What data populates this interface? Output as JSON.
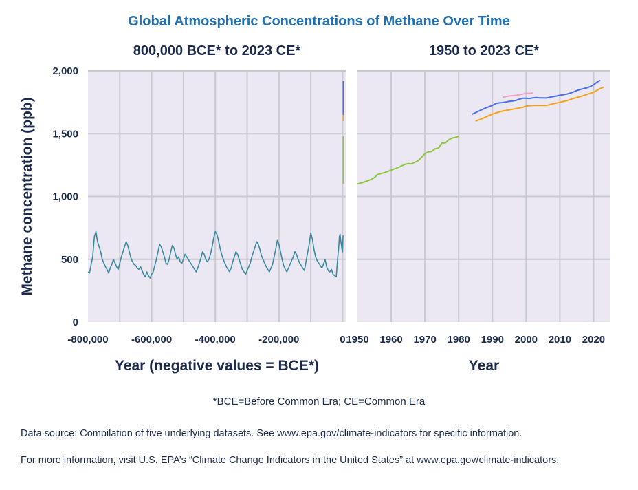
{
  "title": "Global Atmospheric Concentrations of Methane Over Time",
  "footnote": "*BCE=Before Common Era; CE=Common Era",
  "source_lines": [
    "Data source: Compilation of five underlying datasets. See www.epa.gov/climate-indicators for specific information.",
    "For more information, visit U.S. EPA’s “Climate Change Indicators in the United States” at www.epa.gov/climate-indicators."
  ],
  "colors": {
    "title": "#1f6fb2",
    "text": "#1b2a4a",
    "plot_bg": "#ebe8f4",
    "grid": "#c9c9cf",
    "ice_core": "#3a8a9e",
    "green": "#8cc63f",
    "blue": "#4a6fe3",
    "orange": "#f7a21b",
    "pink": "#f29fc5"
  },
  "chart_data": [
    {
      "type": "line",
      "title": "800,000 BCE* to 2023 CE*",
      "xlabel": "Year (negative values = BCE*)",
      "ylabel": "Methane concentration (ppb)",
      "xlim": [
        -800000,
        10000
      ],
      "ylim": [
        0,
        2000
      ],
      "x_ticks": [
        -800000,
        -600000,
        -400000,
        -200000,
        0
      ],
      "x_tick_labels": [
        "-800,000",
        "-600,000",
        "-400,000",
        "-200,000",
        "0"
      ],
      "y_ticks": [
        0,
        500,
        1000,
        1500,
        2000
      ],
      "y_tick_labels": [
        "0",
        "500",
        "1,000",
        "1,500",
        "2,000"
      ],
      "grid": true,
      "series": [
        {
          "color": "#3a8a9e",
          "x": [
            -800000,
            -795000,
            -790000,
            -785000,
            -780000,
            -775000,
            -770000,
            -765000,
            -760000,
            -755000,
            -750000,
            -745000,
            -740000,
            -735000,
            -730000,
            -725000,
            -720000,
            -715000,
            -710000,
            -705000,
            -700000,
            -695000,
            -690000,
            -685000,
            -680000,
            -675000,
            -670000,
            -665000,
            -660000,
            -655000,
            -650000,
            -645000,
            -640000,
            -635000,
            -630000,
            -625000,
            -620000,
            -615000,
            -610000,
            -605000,
            -600000,
            -595000,
            -590000,
            -585000,
            -580000,
            -575000,
            -570000,
            -565000,
            -560000,
            -555000,
            -550000,
            -545000,
            -540000,
            -535000,
            -530000,
            -525000,
            -520000,
            -515000,
            -510000,
            -505000,
            -500000,
            -495000,
            -490000,
            -485000,
            -480000,
            -475000,
            -470000,
            -465000,
            -460000,
            -455000,
            -450000,
            -445000,
            -440000,
            -435000,
            -430000,
            -425000,
            -420000,
            -415000,
            -410000,
            -405000,
            -400000,
            -395000,
            -390000,
            -385000,
            -380000,
            -375000,
            -370000,
            -365000,
            -360000,
            -355000,
            -350000,
            -345000,
            -340000,
            -335000,
            -330000,
            -325000,
            -320000,
            -315000,
            -310000,
            -305000,
            -300000,
            -295000,
            -290000,
            -285000,
            -280000,
            -275000,
            -270000,
            -265000,
            -260000,
            -255000,
            -250000,
            -245000,
            -240000,
            -235000,
            -230000,
            -225000,
            -220000,
            -215000,
            -210000,
            -205000,
            -200000,
            -195000,
            -190000,
            -185000,
            -180000,
            -175000,
            -170000,
            -165000,
            -160000,
            -155000,
            -150000,
            -145000,
            -140000,
            -135000,
            -130000,
            -125000,
            -120000,
            -115000,
            -110000,
            -105000,
            -100000,
            -95000,
            -90000,
            -85000,
            -80000,
            -75000,
            -70000,
            -65000,
            -60000,
            -55000,
            -50000,
            -45000,
            -40000,
            -35000,
            -30000,
            -25000,
            -20000,
            -15000,
            -12000,
            -10000,
            -8000,
            -6000,
            -4000,
            -2000,
            0,
            500,
            1000,
            1500
          ],
          "y": [
            400,
            390,
            460,
            520,
            680,
            720,
            640,
            600,
            560,
            500,
            470,
            440,
            420,
            390,
            430,
            460,
            500,
            470,
            440,
            420,
            470,
            520,
            560,
            600,
            640,
            610,
            560,
            510,
            480,
            460,
            450,
            430,
            420,
            440,
            410,
            380,
            360,
            400,
            370,
            350,
            380,
            400,
            450,
            500,
            560,
            620,
            600,
            560,
            520,
            470,
            460,
            500,
            560,
            610,
            590,
            540,
            500,
            520,
            480,
            470,
            500,
            540,
            520,
            500,
            480,
            460,
            440,
            420,
            400,
            430,
            470,
            510,
            560,
            540,
            500,
            480,
            500,
            540,
            600,
            670,
            720,
            700,
            650,
            590,
            540,
            500,
            470,
            440,
            420,
            400,
            430,
            480,
            520,
            560,
            540,
            500,
            460,
            420,
            400,
            380,
            410,
            440,
            470,
            520,
            560,
            600,
            640,
            620,
            580,
            530,
            500,
            470,
            440,
            420,
            400,
            430,
            460,
            520,
            580,
            650,
            620,
            560,
            500,
            450,
            420,
            400,
            430,
            460,
            490,
            520,
            560,
            540,
            500,
            470,
            450,
            430,
            410,
            480,
            550,
            620,
            710,
            660,
            580,
            520,
            490,
            470,
            450,
            430,
            460,
            500,
            440,
            410,
            400,
            420,
            380,
            370,
            360,
            520,
            600,
            680,
            700,
            650,
            620,
            580,
            560,
            600,
            650,
            690
          ]
        },
        {
          "color": "#8cc63f",
          "x": [
            1950,
            1960,
            1970,
            1980
          ],
          "y": [
            1100,
            1200,
            1340,
            1480
          ]
        },
        {
          "color": "#f7a21b",
          "x": [
            1985,
            2000,
            2010,
            2023
          ],
          "y": [
            1600,
            1720,
            1760,
            1870
          ]
        },
        {
          "color": "#4a6fe3",
          "x": [
            1984,
            2000,
            2010,
            2023
          ],
          "y": [
            1650,
            1780,
            1810,
            1920
          ]
        }
      ]
    },
    {
      "type": "line",
      "title": "1950 to 2023 CE*",
      "xlabel": "Year",
      "ylabel": "",
      "xlim": [
        1950,
        2025
      ],
      "ylim": [
        0,
        2000
      ],
      "x_ticks": [
        1950,
        1960,
        1970,
        1980,
        1990,
        2000,
        2010,
        2020
      ],
      "x_tick_labels": [
        "1950",
        "1960",
        "1970",
        "1980",
        "1990",
        "2000",
        "2010",
        "2020"
      ],
      "y_ticks": [
        0,
        500,
        1000,
        1500,
        2000
      ],
      "grid": true,
      "series": [
        {
          "color": "#8cc63f",
          "x": [
            1950,
            1952,
            1954,
            1955,
            1956,
            1958,
            1960,
            1962,
            1964,
            1965,
            1966,
            1968,
            1970,
            1971,
            1972,
            1973,
            1974,
            1975,
            1976,
            1977,
            1978,
            1979,
            1980
          ],
          "y": [
            1100,
            1115,
            1135,
            1150,
            1175,
            1190,
            1210,
            1230,
            1255,
            1262,
            1260,
            1285,
            1340,
            1355,
            1358,
            1380,
            1385,
            1425,
            1425,
            1450,
            1465,
            1470,
            1480
          ]
        },
        {
          "color": "#4a6fe3",
          "x": [
            1984,
            1986,
            1988,
            1990,
            1991,
            1992,
            1993,
            1994,
            1995,
            1996,
            1997,
            1998,
            1999,
            2000,
            2001,
            2002,
            2003,
            2004,
            2005,
            2006,
            2007,
            2008,
            2009,
            2010,
            2011,
            2012,
            2013,
            2014,
            2015,
            2016,
            2017,
            2018,
            2019,
            2020,
            2021,
            2022
          ],
          "y": [
            1655,
            1680,
            1705,
            1725,
            1740,
            1745,
            1748,
            1752,
            1758,
            1760,
            1765,
            1775,
            1782,
            1782,
            1780,
            1785,
            1788,
            1785,
            1785,
            1784,
            1790,
            1795,
            1800,
            1806,
            1810,
            1815,
            1822,
            1832,
            1843,
            1852,
            1858,
            1865,
            1875,
            1890,
            1910,
            1925
          ]
        },
        {
          "color": "#f29fc5",
          "x": [
            1993,
            1995,
            1997,
            1999,
            2000,
            2001,
            2002
          ],
          "y": [
            1790,
            1800,
            1805,
            1815,
            1822,
            1820,
            1825
          ]
        },
        {
          "color": "#f7a21b",
          "x": [
            1985,
            1987,
            1989,
            1991,
            1993,
            1995,
            1997,
            1999,
            2000,
            2002,
            2004,
            2006,
            2008,
            2010,
            2012,
            2014,
            2016,
            2018,
            2020,
            2021,
            2022,
            2023
          ],
          "y": [
            1600,
            1620,
            1645,
            1665,
            1680,
            1690,
            1700,
            1710,
            1720,
            1725,
            1725,
            1725,
            1738,
            1750,
            1762,
            1780,
            1795,
            1812,
            1830,
            1845,
            1860,
            1870
          ]
        }
      ]
    }
  ]
}
